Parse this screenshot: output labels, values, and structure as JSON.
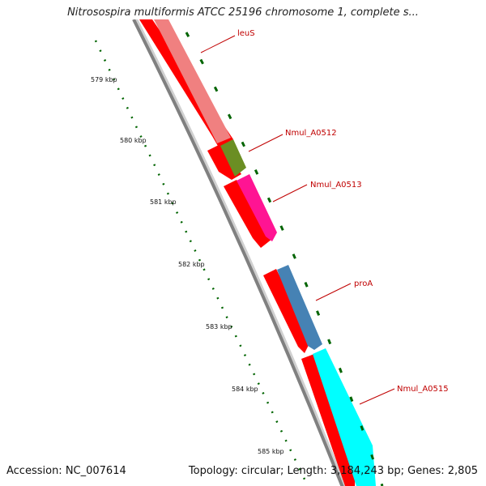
{
  "title": "Nitrosospira multiformis ATCC 25196 chromosome 1, complete s...",
  "accession": "Accession: NC_007614",
  "summary": "Topology: circular; Length: 3,184,243 bp; Genes: 2,805",
  "kbp_labels": [
    "579 kbp",
    "580 kbp",
    "581 kbp",
    "582 kbp",
    "583 kbp",
    "584 kbp",
    "585 kbp"
  ],
  "genes": [
    {
      "name": "leuS",
      "color": "#f08080"
    },
    {
      "name": "Nmul_A0512",
      "color": "#6b8e23"
    },
    {
      "name": "Nmul_A0513",
      "color": "#ff1493"
    },
    {
      "name": "proA",
      "color": "#4682b4"
    },
    {
      "name": "Nmul_A0515",
      "color": "#00ffff"
    }
  ],
  "colors": {
    "cds": "#ff0000",
    "backbone": "#808080",
    "tick": "#006400",
    "label": "#c00000"
  }
}
